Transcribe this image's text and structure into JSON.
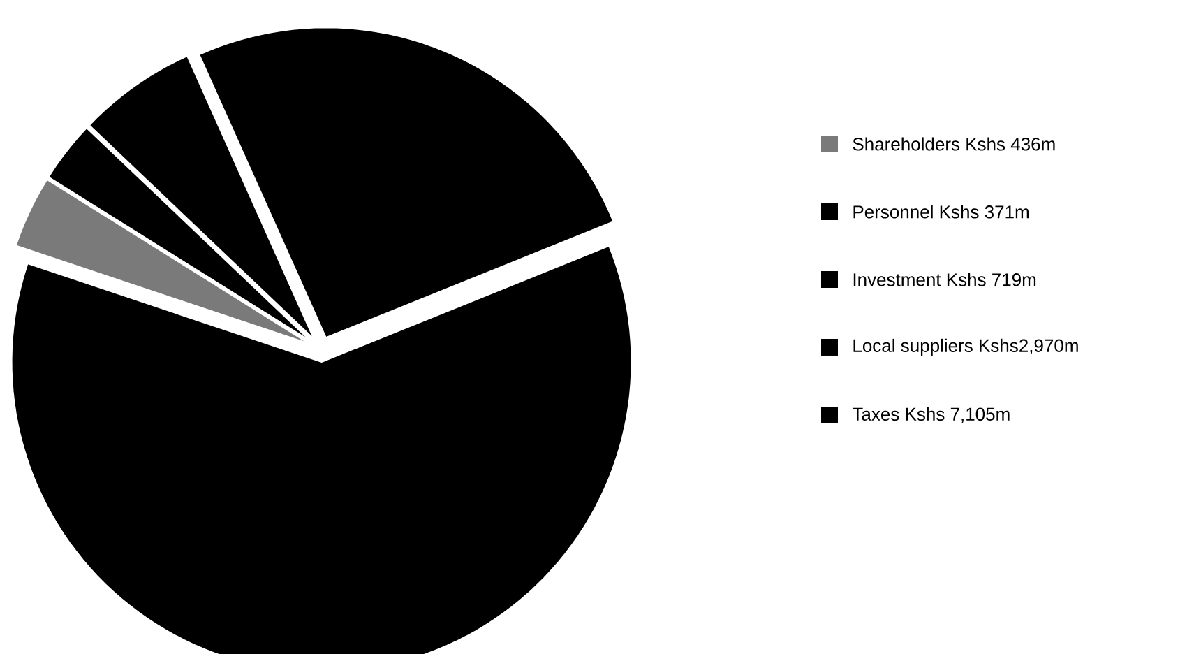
{
  "chart_data": {
    "type": "pie",
    "categories": [
      "Shareholders Kshs 436m",
      "Personnel Kshs 371m",
      "Investment Kshs 719m",
      "Local suppliers Kshs2,970m",
      "Taxes Kshs 7,105m"
    ],
    "values": [
      3.76,
      3.2,
      6.2,
      25.6,
      61.24
    ],
    "colors": [
      "#7a7a7a",
      "#000000",
      "#000000",
      "#000000",
      "#000000"
    ],
    "legend": "right"
  }
}
